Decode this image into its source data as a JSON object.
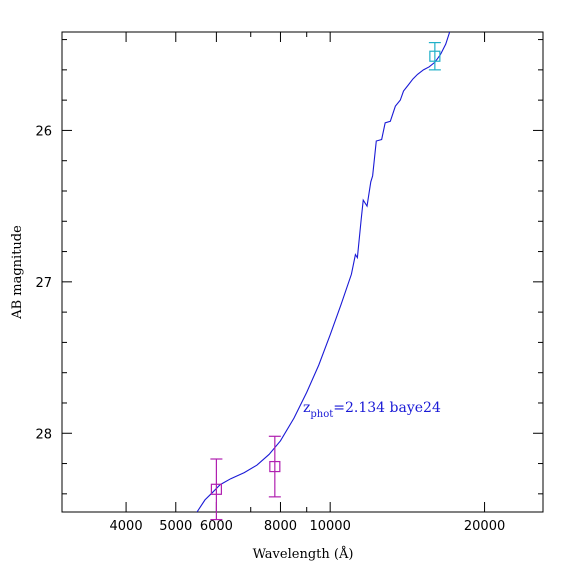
{
  "chart_data": {
    "type": "line",
    "xlabel": "Wavelength (Å)",
    "ylabel": "AB magnitude",
    "x_scale": "log",
    "xlim": [
      3000,
      26000
    ],
    "ylim": [
      28.52,
      25.35
    ],
    "x_ticks": [
      4000,
      5000,
      6000,
      8000,
      10000,
      20000
    ],
    "x_tick_labels": [
      "4000",
      "5000",
      "6000",
      "8000",
      "10000",
      "20000"
    ],
    "y_ticks": [
      26,
      27,
      28
    ],
    "y_tick_labels": [
      "26",
      "27",
      "28"
    ],
    "annotation": {
      "prefix": "z",
      "subscript": "phot",
      "text": "=2.134 baye24",
      "color": "#1a1ad6"
    },
    "series": [
      {
        "kind": "model",
        "color": "#1a1ad6",
        "x": [
          5500,
          5700,
          5900,
          6100,
          6400,
          6800,
          7200,
          7600,
          8000,
          8500,
          9000,
          9500,
          10000,
          10500,
          11000,
          11200,
          11300,
          11500,
          11600,
          11800,
          12000,
          12100,
          12300,
          12600,
          12800,
          13100,
          13400,
          13700,
          13900,
          14200,
          14500,
          14800,
          15200,
          15600,
          16000,
          16400,
          16800,
          17100
        ],
        "y": [
          28.52,
          28.44,
          28.39,
          28.34,
          28.3,
          28.26,
          28.21,
          28.14,
          28.05,
          27.9,
          27.73,
          27.55,
          27.35,
          27.15,
          26.95,
          26.82,
          26.84,
          26.58,
          26.46,
          26.5,
          26.34,
          26.3,
          26.07,
          26.06,
          25.95,
          25.94,
          25.84,
          25.8,
          25.74,
          25.7,
          25.66,
          25.63,
          25.6,
          25.58,
          25.55,
          25.5,
          25.43,
          25.35
        ]
      },
      {
        "kind": "points",
        "color": "#b020b0",
        "x": [
          6000,
          7800
        ],
        "y": [
          28.37,
          28.22
        ],
        "y_err": [
          0.2,
          0.2
        ]
      },
      {
        "kind": "points",
        "color": "#20b0c8",
        "x": [
          16000
        ],
        "y": [
          25.51
        ],
        "y_err": [
          0.09
        ]
      }
    ]
  }
}
